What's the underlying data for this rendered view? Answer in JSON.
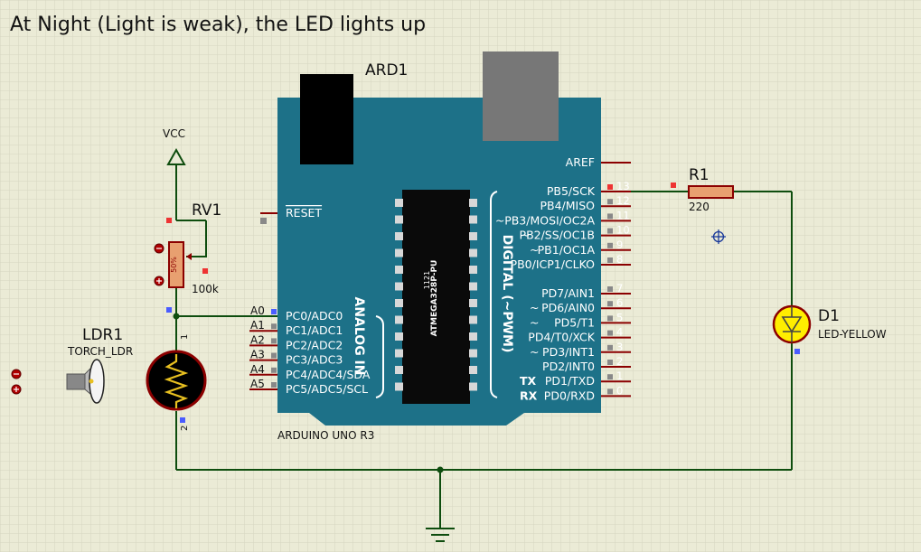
{
  "title": "At Night (Light is weak), the LED lights up",
  "board": {
    "ref": "ARD1",
    "name": "ARDUINO UNO R3",
    "chip_label": "ATMEGA328P-PU",
    "chip_code": "1121",
    "reset_label": "RESET",
    "aref_label": "AREF",
    "analog_section": "ANALOG IN",
    "digital_section": "DIGITAL (~PWM)",
    "analog_pins": [
      {
        "header": "A0",
        "label": "PC0/ADC0"
      },
      {
        "header": "A1",
        "label": "PC1/ADC1"
      },
      {
        "header": "A2",
        "label": "PC2/ADC2"
      },
      {
        "header": "A3",
        "label": "PC3/ADC3"
      },
      {
        "header": "A4",
        "label": "PC4/ADC4/SDA"
      },
      {
        "header": "A5",
        "label": "PC5/ADC5/SCL"
      }
    ],
    "digital_pins": [
      {
        "num": "13",
        "label": "PB5/SCK",
        "prefix": ""
      },
      {
        "num": "12",
        "label": "PB4/MISO",
        "prefix": ""
      },
      {
        "num": "11",
        "label": "PB3/MOSI/OC2A",
        "prefix": "~"
      },
      {
        "num": "10",
        "label": "PB2/SS/OC1B",
        "prefix": "~"
      },
      {
        "num": "9",
        "label": "PB1/OC1A",
        "prefix": "~"
      },
      {
        "num": "8",
        "label": "PB0/ICP1/CLKO",
        "prefix": ""
      },
      {
        "num": "7",
        "label": "PD7/AIN1",
        "prefix": ""
      },
      {
        "num": "6",
        "label": "PD6/AIN0",
        "prefix": "~"
      },
      {
        "num": "5",
        "label": "PD5/T1",
        "prefix": "~"
      },
      {
        "num": "4",
        "label": "PD4/T0/XCK",
        "prefix": ""
      },
      {
        "num": "3",
        "label": "PD3/INT1",
        "prefix": "~"
      },
      {
        "num": "2",
        "label": "PD2/INT0",
        "prefix": ""
      },
      {
        "num": "1",
        "label": "PD1/TXD",
        "prefix": "TX"
      },
      {
        "num": "0",
        "label": "PD0/RXD",
        "prefix": "RX"
      }
    ]
  },
  "components": {
    "vcc": "VCC",
    "rv1": {
      "ref": "RV1",
      "value": "100k",
      "wiper": "50%"
    },
    "ldr1": {
      "ref": "LDR1",
      "type": "TORCH_LDR",
      "pin1": "1",
      "pin2": "2"
    },
    "r1": {
      "ref": "R1",
      "value": "220"
    },
    "d1": {
      "ref": "D1",
      "type": "LED-YELLOW"
    }
  },
  "colors": {
    "background": "#ebebd6",
    "grid": "#d4d4bd",
    "board": "#1d7188",
    "wire": "#0e4d0e",
    "component": "#8b0000",
    "led": "#ffee00"
  }
}
